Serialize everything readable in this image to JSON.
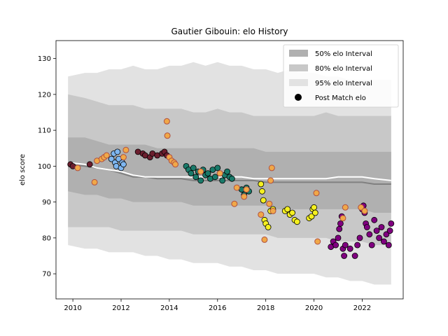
{
  "chart_data": {
    "type": "line",
    "title": "Gautier Gibouin: elo History",
    "xlabel": "",
    "ylabel": "elo score",
    "xlim": [
      2009.3,
      2023.7
    ],
    "ylim": [
      63,
      135
    ],
    "xticks": [
      2010,
      2012,
      2014,
      2016,
      2018,
      2020,
      2022
    ],
    "yticks": [
      70,
      80,
      90,
      100,
      110,
      120,
      130
    ],
    "legend_position": "upper right",
    "legend": [
      "50% elo Interval",
      "80% elo Interval",
      "95% elo Interval",
      "Post Match elo"
    ],
    "colors": {
      "band50": "#b0b0b0",
      "band80": "#c8c8c8",
      "band95": "#e2e2e2",
      "median_line": "#808080",
      "mean_line": "#ffffff",
      "post_match_face": "#f0a848",
      "post_match_edge": "#b05040",
      "team_colors": [
        "#6b1e2e",
        "#7eb6f0",
        "#1a7a6a",
        "#f5f020",
        "#800080"
      ]
    },
    "intervals": {
      "x": [
        2009.8,
        2010.5,
        2011.0,
        2011.5,
        2012.0,
        2012.5,
        2013.0,
        2013.5,
        2014.0,
        2014.5,
        2015.0,
        2015.5,
        2016.0,
        2016.5,
        2017.0,
        2017.5,
        2018.0,
        2018.5,
        2019.0,
        2019.5,
        2020.0,
        2020.5,
        2021.0,
        2021.5,
        2022.0,
        2022.5,
        2023.2
      ],
      "p50_low": [
        93,
        92,
        92,
        91,
        91,
        90,
        90,
        90,
        90,
        90,
        89,
        89,
        89,
        89,
        89,
        89,
        89,
        88,
        88,
        88,
        88,
        88,
        88,
        88,
        88,
        87,
        87
      ],
      "p50_high": [
        108,
        108,
        107,
        106,
        106,
        106,
        106,
        105,
        105,
        105,
        105,
        105,
        105,
        105,
        105,
        105,
        104,
        104,
        104,
        104,
        104,
        104,
        104,
        104,
        104,
        104,
        104
      ],
      "p80_low": [
        83,
        83,
        83,
        83,
        82,
        82,
        82,
        82,
        82,
        82,
        81,
        81,
        81,
        81,
        81,
        81,
        81,
        80,
        80,
        80,
        80,
        80,
        79,
        79,
        79,
        78,
        78
      ],
      "p80_high": [
        120,
        119,
        118,
        117,
        117,
        117,
        116,
        116,
        116,
        116,
        115,
        115,
        116,
        115,
        115,
        114,
        114,
        114,
        114,
        114,
        114,
        115,
        114,
        114,
        114,
        114,
        114
      ],
      "p95_low": [
        78,
        77,
        77,
        76,
        76,
        76,
        75,
        75,
        74,
        74,
        73,
        73,
        73,
        72,
        72,
        71,
        71,
        70,
        70,
        70,
        70,
        69,
        69,
        68,
        68,
        67,
        67
      ],
      "p95_high": [
        125,
        126,
        126,
        127,
        127,
        128,
        127,
        127,
        128,
        128,
        129,
        128,
        129,
        128,
        128,
        127,
        127,
        126,
        127,
        126,
        126,
        125,
        125,
        124,
        124,
        124,
        124
      ],
      "median": [
        100.5,
        100,
        99.5,
        99,
        98,
        97,
        97,
        96.5,
        96.5,
        96.5,
        96,
        96,
        96,
        96,
        96,
        96,
        95.5,
        95.5,
        95.5,
        95.5,
        95.5,
        95.5,
        95.5,
        95.5,
        95.5,
        95,
        95
      ],
      "mean": [
        101,
        100.5,
        99.5,
        99,
        98.5,
        97.5,
        97,
        97,
        97,
        97,
        97,
        97,
        97,
        97,
        97,
        96.5,
        96.5,
        96.5,
        96.5,
        96.5,
        96.5,
        96.5,
        97,
        97,
        97,
        96.5,
        96
      ]
    },
    "series": [
      {
        "team": 0,
        "x": [
          2009.9,
          2010.0,
          2010.7,
          2012.7,
          2012.9,
          2013.0,
          2013.2,
          2013.3,
          2013.5,
          2013.7,
          2013.8,
          2013.9
        ],
        "y": [
          100.5,
          100,
          100.5,
          104,
          103.5,
          103,
          102.5,
          103.5,
          103,
          103.5,
          104,
          103
        ]
      },
      {
        "team": 1,
        "x": [
          2011.6,
          2011.7,
          2011.75,
          2011.8,
          2011.85,
          2011.9,
          2012.0,
          2012.05,
          2012.1
        ],
        "y": [
          102,
          103.5,
          101,
          100,
          104,
          102,
          99.5,
          101,
          100.5
        ]
      },
      {
        "team": 2,
        "x": [
          2014.7,
          2014.8,
          2014.9,
          2015.0,
          2015.1,
          2015.2,
          2015.3,
          2015.4,
          2015.5,
          2015.6,
          2015.7,
          2015.8,
          2015.9,
          2016.0,
          2016.1,
          2016.2,
          2016.3,
          2016.4,
          2016.5,
          2016.6,
          2017.0,
          2017.1,
          2017.2,
          2017.3
        ],
        "y": [
          100,
          99,
          98,
          99.5,
          97,
          98.5,
          96,
          99,
          97.5,
          98,
          96.5,
          99,
          97,
          99.5,
          98,
          96,
          97.5,
          98.5,
          97,
          96.5,
          93.5,
          92,
          94,
          93
        ]
      },
      {
        "team": 3,
        "x": [
          2017.8,
          2017.85,
          2017.9,
          2017.95,
          2018.0,
          2018.1,
          2018.2,
          2018.3,
          2018.8,
          2018.9,
          2019.0,
          2019.1,
          2019.2,
          2019.3,
          2019.8,
          2019.9,
          2019.95,
          2020.0,
          2020.05
        ],
        "y": [
          95,
          93,
          90.5,
          85,
          84,
          83,
          87.5,
          88,
          87.5,
          88,
          86.5,
          87,
          85,
          84.5,
          85.5,
          86,
          88,
          88.5,
          87
        ]
      },
      {
        "team": 4,
        "x": [
          2020.7,
          2020.8,
          2020.9,
          2021.0,
          2021.05,
          2021.1,
          2021.15,
          2021.2,
          2021.25,
          2021.3,
          2021.5,
          2021.7,
          2021.8,
          2021.9,
          2022.0,
          2022.05,
          2022.1,
          2022.15,
          2022.2,
          2022.3,
          2022.4,
          2022.5,
          2022.6,
          2022.7,
          2022.8,
          2022.9,
          2023.0,
          2023.1,
          2023.15,
          2023.2
        ],
        "y": [
          77.5,
          79,
          78,
          80,
          82.5,
          84,
          86,
          77,
          75,
          78,
          77,
          75,
          78,
          80,
          88,
          89,
          87,
          84,
          83,
          81,
          78,
          85,
          82,
          80,
          83,
          79,
          81,
          78,
          82,
          84
        ]
      }
    ],
    "post_match": {
      "x": [
        2010.2,
        2010.9,
        2011.0,
        2011.2,
        2011.3,
        2011.4,
        2012.1,
        2012.2,
        2013.9,
        2013.92,
        2014.0,
        2014.1,
        2014.2,
        2014.25,
        2015.3,
        2016.1,
        2016.7,
        2016.8,
        2017.1,
        2017.2,
        2017.8,
        2017.95,
        2018.15,
        2018.2,
        2018.25,
        2018.3,
        2020.1,
        2020.15,
        2021.2,
        2021.3,
        2021.95,
        2022.1
      ],
      "y": [
        99.5,
        95.5,
        101.5,
        102,
        102.5,
        103,
        102.5,
        104.5,
        112.5,
        108.5,
        102.5,
        101.5,
        101,
        100.5,
        98.5,
        98,
        89.5,
        94,
        91.5,
        93.5,
        86.5,
        79.5,
        89.5,
        96,
        99.5,
        87.5,
        92.5,
        79,
        85.5,
        88.5,
        88.5,
        87.5
      ]
    }
  }
}
